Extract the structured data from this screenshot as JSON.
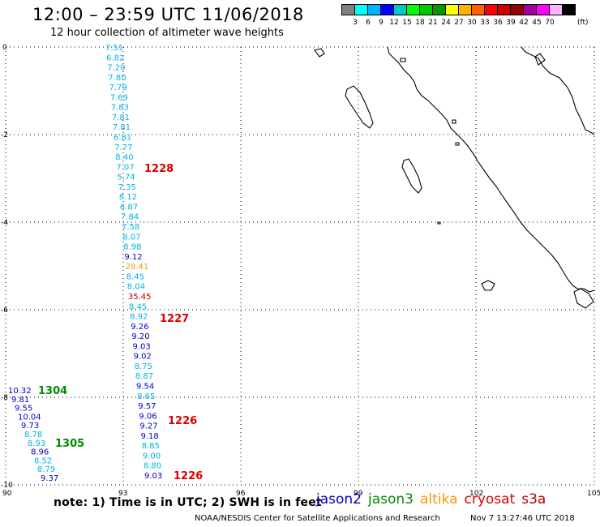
{
  "header": {
    "title": "12:00 – 23:59 UTC 11/06/2018",
    "subtitle": "12 hour collection of altimeter wave heights"
  },
  "legend": {
    "colors": [
      "#808080",
      "#00ffff",
      "#00b4ff",
      "#0000ff",
      "#00c8c8",
      "#00ff00",
      "#00c800",
      "#009600",
      "#ffff00",
      "#ffb400",
      "#ff6400",
      "#ff0000",
      "#c80000",
      "#960000",
      "#a000a0",
      "#ff00ff",
      "#ffb4ff",
      "#000000"
    ],
    "labels": [
      "3",
      "6",
      "9",
      "12",
      "15",
      "18",
      "21",
      "24",
      "27",
      "30",
      "33",
      "36",
      "39",
      "42",
      "45",
      "70"
    ],
    "unit": "(ft)"
  },
  "axes": {
    "lon_labels": [
      "90",
      "93",
      "96",
      "99",
      "102",
      "105"
    ],
    "lat_labels": [
      "0",
      "-2",
      "-4",
      "-6",
      "-8",
      "-10"
    ]
  },
  "satellite_colors": {
    "jason2": "#0000c8",
    "jason3": "#008c00",
    "altika": "#ff9600",
    "cryosat": "#dc0000",
    "s3a": "#b40000",
    "altika_light": "#00b4e6"
  },
  "tracks": {
    "track_a": [
      "7.51",
      "6.82",
      "7.20",
      "7.80",
      "7.79",
      "7.69",
      "7.83",
      "7.81",
      "7.81",
      "6.81",
      "7.77",
      "8.40",
      "7.07",
      "5.74",
      "7.35",
      "8.12",
      "6.87",
      "7.84",
      "7.58",
      "8.07",
      "8.98",
      "9.12",
      "28.41",
      "8.45",
      "8.04",
      "35.45",
      "8.45",
      "8.92",
      "9.26",
      "9.20",
      "9.03",
      "9.02",
      "8.75",
      "8.87",
      "9.54",
      "8.65",
      "9.57",
      "9.06",
      "9.27",
      "9.18",
      "8.85",
      "9.00",
      "8.80",
      "9.03"
    ],
    "track_a_colors": [
      "light",
      "light",
      "light",
      "light",
      "light",
      "light",
      "light",
      "light",
      "light",
      "light",
      "light",
      "light",
      "light",
      "light",
      "light",
      "light",
      "light",
      "light",
      "light",
      "light",
      "light",
      "j2",
      "altika",
      "light",
      "light",
      "s3a",
      "light",
      "light",
      "j2",
      "j2",
      "j2",
      "j2",
      "light",
      "light",
      "j2",
      "light",
      "j2",
      "j2",
      "j2",
      "j2",
      "light",
      "light",
      "light",
      "j2"
    ],
    "track_b": [
      "10.32",
      "9.81",
      "9.55",
      "10.04",
      "9.73",
      "8.78",
      "8.93",
      "8.96",
      "8.52",
      "8.79",
      "9.37"
    ],
    "track_b_colors": [
      "j2",
      "j2",
      "j2",
      "j2",
      "j2",
      "light",
      "light",
      "j2",
      "light",
      "light",
      "j2"
    ],
    "times": [
      {
        "text": "1228",
        "color": "cryosat"
      },
      {
        "text": "1227",
        "color": "cryosat"
      },
      {
        "text": "1226",
        "color": "cryosat"
      },
      {
        "text": "1226",
        "color": "cryosat"
      },
      {
        "text": "1304",
        "color": "jason3"
      },
      {
        "text": "1305",
        "color": "jason3"
      }
    ]
  },
  "footer": {
    "note": "note: 1) Time is in UTC; 2) SWH is in feet",
    "satellites": [
      "jason2",
      "jason3",
      "altika",
      "cryosat",
      "s3a"
    ],
    "credit": "NOAA/NESDIS Center for Satellite Applications and Research",
    "timestamp": "Nov  7 13:27:46 UTC 2018"
  }
}
